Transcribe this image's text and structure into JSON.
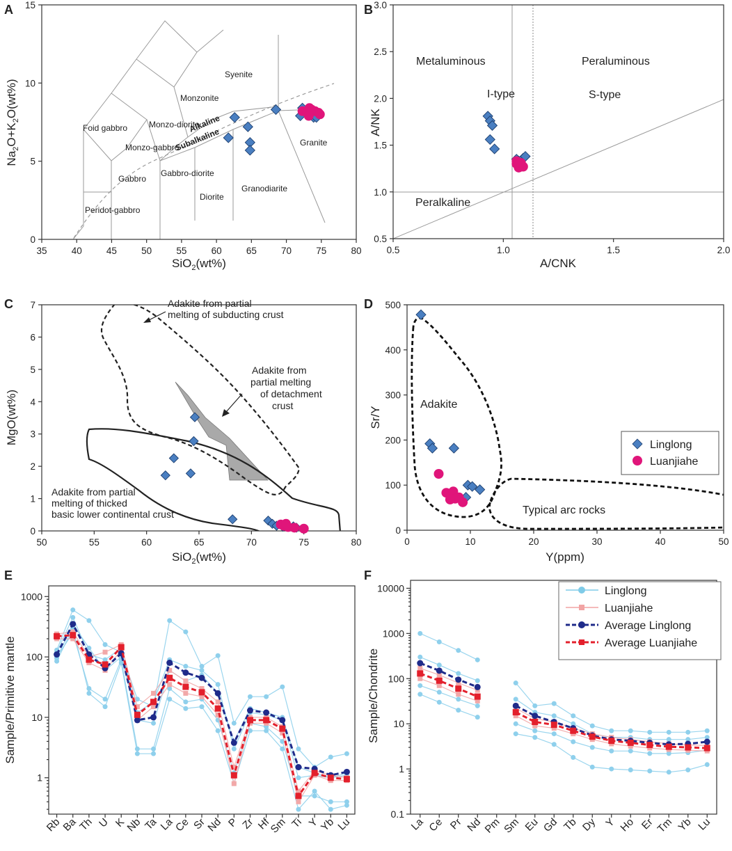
{
  "chart_data": [
    {
      "panel": "A",
      "type": "scatter",
      "xlabel": "SiO2(wt%)",
      "ylabel": "Na2O+K2O(wt%)",
      "xlim": [
        35,
        80
      ],
      "ylim": [
        0,
        15
      ],
      "xticks": [
        35,
        40,
        45,
        50,
        55,
        60,
        65,
        70,
        75,
        80
      ],
      "yticks": [
        0,
        5,
        10,
        15
      ],
      "field_labels": [
        "Foid gabbro",
        "Monzo-diorite",
        "Monzonite",
        "Syenite",
        "Monzo-gabbro",
        "Alkaline",
        "Subalkaline",
        "Granite",
        "Gabbro",
        "Gabbro-diorite",
        "Diorite",
        "Granodiarite",
        "Peridot-gabbro"
      ],
      "series": [
        {
          "name": "Linglong",
          "marker": "diamond",
          "color": "#4a7fc1",
          "points": [
            [
              62.6,
              7.8
            ],
            [
              61.7,
              6.5
            ],
            [
              64.5,
              7.2
            ],
            [
              64.8,
              6.2
            ],
            [
              64.8,
              5.7
            ],
            [
              68.5,
              8.3
            ],
            [
              72.0,
              7.9
            ],
            [
              72.3,
              8.4
            ],
            [
              73.5,
              8.0
            ],
            [
              73.9,
              7.8
            ],
            [
              74.3,
              7.8
            ]
          ]
        },
        {
          "name": "Luanjiahe",
          "marker": "circle",
          "color": "#e0157a",
          "points": [
            [
              72.3,
              8.2
            ],
            [
              73.0,
              8.1
            ],
            [
              73.3,
              8.4
            ],
            [
              73.6,
              8.3
            ],
            [
              74.1,
              8.2
            ],
            [
              74.6,
              8.1
            ],
            [
              74.8,
              8.0
            ],
            [
              73.2,
              7.9
            ]
          ]
        }
      ]
    },
    {
      "panel": "B",
      "type": "scatter",
      "xlabel": "A/CNK",
      "ylabel": "A/NK",
      "xlim": [
        0.5,
        2.0
      ],
      "ylim": [
        0.5,
        3.0
      ],
      "xticks": [
        "0.5",
        "1.0",
        "1.5",
        "2.0"
      ],
      "yticks": [
        "0.5",
        "1.0",
        "1.5",
        "2.0",
        "2.5",
        "3.0"
      ],
      "field_labels": [
        "Metaluminous",
        "Peraluminous",
        "I-type",
        "S-type",
        "Peralkaline"
      ],
      "series": [
        {
          "name": "Linglong",
          "marker": "diamond",
          "color": "#4a7fc1",
          "points": [
            [
              0.93,
              1.81
            ],
            [
              0.94,
              1.76
            ],
            [
              0.95,
              1.71
            ],
            [
              0.94,
              1.56
            ],
            [
              0.96,
              1.46
            ],
            [
              1.06,
              1.35
            ],
            [
              1.07,
              1.33
            ],
            [
              1.09,
              1.36
            ],
            [
              1.1,
              1.38
            ],
            [
              1.08,
              1.3
            ]
          ]
        },
        {
          "name": "Luanjiahe",
          "marker": "circle",
          "color": "#e0157a",
          "points": [
            [
              1.06,
              1.3
            ],
            [
              1.07,
              1.28
            ],
            [
              1.08,
              1.29
            ],
            [
              1.09,
              1.27
            ],
            [
              1.06,
              1.33
            ],
            [
              1.07,
              1.26
            ],
            [
              1.08,
              1.31
            ]
          ]
        }
      ]
    },
    {
      "panel": "C",
      "type": "scatter",
      "xlabel": "SiO2(wt%)",
      "ylabel": "MgO(wt%)",
      "xlim": [
        50,
        80
      ],
      "ylim": [
        0,
        7
      ],
      "xticks": [
        50,
        55,
        60,
        65,
        70,
        75,
        80
      ],
      "yticks": [
        0,
        1,
        2,
        3,
        4,
        5,
        6,
        7
      ],
      "annotations": [
        "Adakite from partial melting of subducting crust",
        "Adakite from partial melting of detachment crust",
        "Adakite from partial melting of thicked basic lower continental crust"
      ],
      "series": [
        {
          "name": "Linglong",
          "marker": "diamond",
          "color": "#4a7fc1",
          "points": [
            [
              61.8,
              1.72
            ],
            [
              62.6,
              2.25
            ],
            [
              64.5,
              2.78
            ],
            [
              64.6,
              3.52
            ],
            [
              64.2,
              1.78
            ],
            [
              68.2,
              0.36
            ],
            [
              71.6,
              0.32
            ],
            [
              72.0,
              0.22
            ],
            [
              72.4,
              0.16
            ],
            [
              73.0,
              0.13
            ],
            [
              74.0,
              0.14
            ],
            [
              74.3,
              0.1
            ]
          ]
        },
        {
          "name": "Luanjiahe",
          "marker": "circle",
          "color": "#e0157a",
          "points": [
            [
              72.8,
              0.2
            ],
            [
              73.1,
              0.16
            ],
            [
              73.5,
              0.12
            ],
            [
              74.1,
              0.1
            ],
            [
              75.0,
              0.07
            ],
            [
              73.3,
              0.22
            ]
          ]
        }
      ]
    },
    {
      "panel": "D",
      "type": "scatter",
      "xlabel": "Y(ppm)",
      "ylabel": "Sr/Y",
      "xlim": [
        0,
        50
      ],
      "ylim": [
        0,
        500
      ],
      "xticks": [
        0,
        10,
        20,
        30,
        40,
        50
      ],
      "yticks": [
        0,
        100,
        200,
        300,
        400,
        500
      ],
      "field_labels": [
        "Adakite",
        "Typical arc rocks"
      ],
      "legend": [
        "Linglong",
        "Luanjiahe"
      ],
      "series": [
        {
          "name": "Linglong",
          "marker": "diamond",
          "color": "#4a7fc1",
          "points": [
            [
              2.2,
              478
            ],
            [
              3.6,
              192
            ],
            [
              4.0,
              182
            ],
            [
              7.4,
              182
            ],
            [
              9.6,
              100
            ],
            [
              10.3,
              97
            ],
            [
              11.5,
              90
            ],
            [
              9.3,
              73
            ]
          ]
        },
        {
          "name": "Luanjiahe",
          "marker": "circle",
          "color": "#e0157a",
          "points": [
            [
              5.0,
              125
            ],
            [
              6.2,
              83
            ],
            [
              6.9,
              78
            ],
            [
              7.3,
              86
            ],
            [
              7.6,
              70
            ],
            [
              8.2,
              73
            ],
            [
              8.8,
              62
            ],
            [
              6.8,
              68
            ]
          ]
        }
      ]
    },
    {
      "panel": "E",
      "type": "line",
      "scale": "log",
      "xlabel": "",
      "ylabel": "Sample/Primitive mantle",
      "ylim": [
        0.25,
        1500
      ],
      "yticks": [
        "1",
        "10",
        "100",
        "1000"
      ],
      "categories": [
        "Rb",
        "Ba",
        "Th",
        "U",
        "K",
        "Nb",
        "Ta",
        "La",
        "Ce",
        "Sr",
        "Nd",
        "P",
        "Zr",
        "Hf",
        "Sm",
        "Ti",
        "Y",
        "Yb",
        "Lu"
      ],
      "series": [
        {
          "name": "Average Linglong",
          "color": "#1f2b8a",
          "values": [
            110,
            350,
            110,
            65,
            115,
            9,
            10,
            80,
            55,
            45,
            25,
            3.8,
            13,
            12,
            9,
            1.5,
            1.4,
            1.1,
            1.25
          ]
        },
        {
          "name": "Average Luanjiahe",
          "color": "#e3202c",
          "values": [
            220,
            230,
            90,
            75,
            145,
            11,
            18,
            45,
            32,
            26,
            14,
            1.1,
            9,
            9,
            6.5,
            0.5,
            1.2,
            1.0,
            0.95
          ]
        }
      ],
      "sample_profiles": [
        {
          "name": "Linglong",
          "values": [
            [
              130,
              600,
              400,
              160,
              120,
              20,
              15,
              400,
              260,
              70,
              105,
              8,
              22,
              22,
              32,
              3,
              1.5,
              2.2,
              2.5
            ],
            [
              95,
              350,
              140,
              60,
              100,
              9,
              8,
              60,
              40,
              50,
              25,
              4,
              14,
              12,
              10,
              1.5,
              1.2,
              1.0,
              1.2
            ],
            [
              100,
              250,
              30,
              20,
              90,
              3,
              3,
              30,
              18,
              20,
              9,
              1.2,
              8,
              7,
              4,
              0.5,
              0.5,
              0.4,
              0.4
            ],
            [
              120,
              450,
              110,
              90,
              140,
              12,
              18,
              90,
              70,
              60,
              35,
              3,
              12,
              11,
              9,
              1.0,
              1.1,
              1.0,
              1.1
            ],
            [
              85,
              300,
              25,
              15,
              80,
              2.5,
              2.5,
              20,
              14,
              15,
              6,
              0.8,
              6,
              6,
              3,
              0.3,
              0.6,
              0.3,
              0.35
            ]
          ]
        },
        {
          "name": "Luanjiahe",
          "values": [
            [
              240,
              260,
              100,
              120,
              160,
              15,
              25,
              60,
              40,
              30,
              18,
              1.5,
              10,
              10,
              7,
              0.6,
              1.3,
              1.1,
              1.0
            ],
            [
              200,
              200,
              80,
              60,
              130,
              9,
              15,
              35,
              25,
              22,
              11,
              0.8,
              8,
              8,
              5.5,
              0.4,
              1.1,
              0.9,
              0.9
            ]
          ]
        }
      ]
    },
    {
      "panel": "F",
      "type": "line",
      "scale": "log",
      "xlabel": "",
      "ylabel": "Sample/Chondrite",
      "ylim": [
        0.1,
        15000
      ],
      "yticks": [
        "0.1",
        "1",
        "10",
        "100",
        "1000",
        "10000"
      ],
      "categories": [
        "La",
        "Ce",
        "Pr",
        "Nd",
        "Pm",
        "Sm",
        "Eu",
        "Gd",
        "Tb",
        "Dy",
        "Y",
        "Ho",
        "Er",
        "Tm",
        "Yb",
        "Lu"
      ],
      "legend": [
        "Linglong",
        "Luanjiahe",
        "Average Linglong",
        "Average Luanjiahe"
      ],
      "series": [
        {
          "name": "Average Linglong",
          "color": "#1f2b8a",
          "values": [
            220,
            150,
            95,
            65,
            null,
            25,
            15,
            11,
            8,
            5.5,
            4.5,
            4.2,
            3.8,
            3.5,
            3.6,
            4.0
          ]
        },
        {
          "name": "Average Luanjiahe",
          "color": "#e3202c",
          "values": [
            130,
            90,
            60,
            40,
            null,
            18,
            11,
            9.5,
            7,
            5.2,
            4.2,
            3.8,
            3.4,
            3.1,
            3.0,
            2.9
          ]
        }
      ],
      "sample_profiles": [
        {
          "name": "Linglong",
          "values": [
            [
              1000,
              650,
              420,
              260,
              null,
              80,
              25,
              28,
              15,
              9,
              7,
              7,
              6.5,
              6.5,
              6.5,
              7
            ],
            [
              300,
              200,
              130,
              90,
              null,
              35,
              18,
              15,
              10,
              6,
              5,
              5,
              4.5,
              4.5,
              4.5,
              5
            ],
            [
              70,
              50,
              35,
              25,
              null,
              10,
              7,
              6,
              4,
              3,
              2.5,
              2.5,
              2.2,
              2.2,
              2.3,
              2.6
            ],
            [
              45,
              30,
              20,
              14,
              null,
              6,
              5,
              3.5,
              1.8,
              1.1,
              1.0,
              0.95,
              0.9,
              0.85,
              0.95,
              1.25
            ]
          ]
        },
        {
          "name": "Luanjiahe",
          "values": [
            [
              170,
              120,
              80,
              55,
              null,
              22,
              13,
              11,
              8,
              6,
              5,
              4.5,
              4,
              3.6,
              3.4,
              3.3
            ],
            [
              100,
              70,
              45,
              32,
              null,
              15,
              9,
              8,
              6,
              4.5,
              3.6,
              3.2,
              2.9,
              2.7,
              2.6,
              2.5
            ]
          ]
        }
      ]
    }
  ],
  "panel_letters": [
    "A",
    "B",
    "C",
    "D",
    "E",
    "F"
  ]
}
